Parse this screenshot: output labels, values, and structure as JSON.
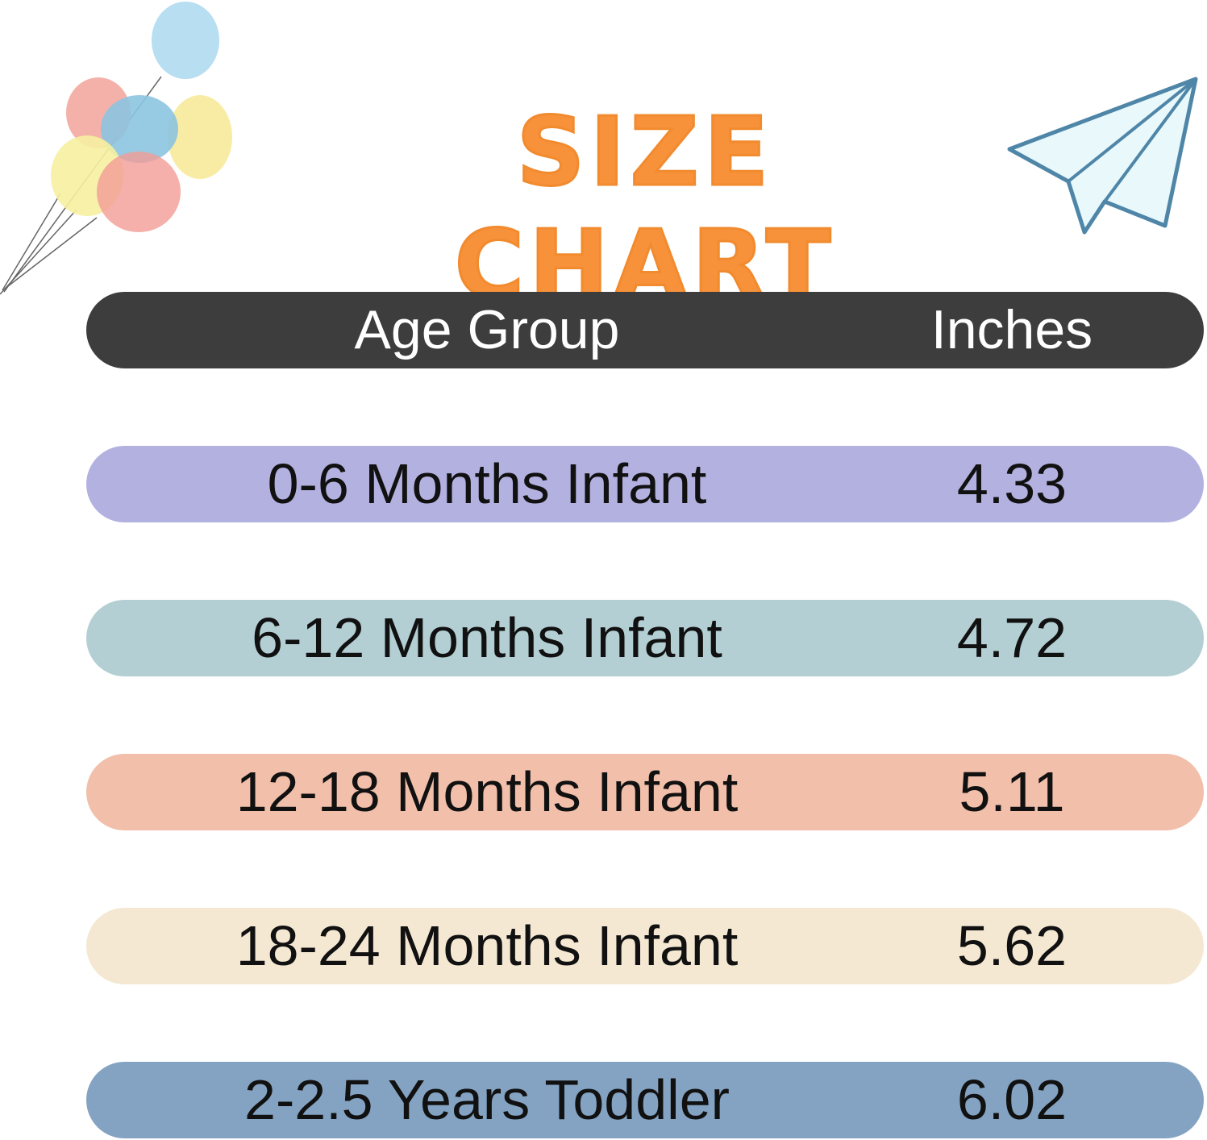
{
  "title": "SIZE CHART",
  "table": {
    "headers": {
      "age_group": "Age Group",
      "inches": "Inches"
    },
    "header_color": "#3d3d3d",
    "rows": [
      {
        "age": "0-6 Months Infant",
        "inches": "4.33",
        "color": "#b3b1e0"
      },
      {
        "age": "6-12 Months Infant",
        "inches": "4.72",
        "color": "#b3cfd4"
      },
      {
        "age": "12-18 Months Infant",
        "inches": "5.11",
        "color": "#f1bfaa"
      },
      {
        "age": "18-24 Months Infant",
        "inches": "5.62",
        "color": "#f5e8d3"
      },
      {
        "age": "2-2.5 Years Toddler",
        "inches": "6.02",
        "color": "#84a3c2"
      }
    ]
  },
  "decorations": {
    "left": "balloons-icon",
    "right": "paper-plane-icon"
  },
  "accent_color": "#f7913a"
}
